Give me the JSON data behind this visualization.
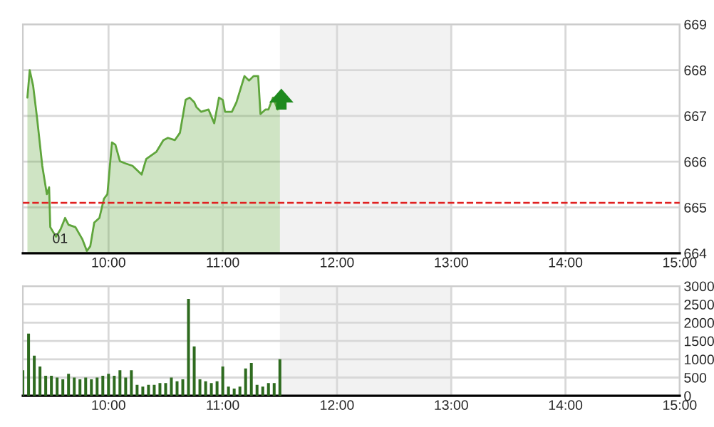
{
  "chart_data": [
    {
      "type": "area",
      "x": [
        9.29,
        9.31,
        9.34,
        9.375,
        9.42,
        9.46,
        9.48,
        9.49,
        9.54,
        9.58,
        9.62,
        9.65,
        9.71,
        9.77,
        9.81,
        9.84,
        9.875,
        9.92,
        9.96,
        9.99,
        10.03,
        10.06,
        10.1,
        10.15,
        10.21,
        10.29,
        10.33,
        10.42,
        10.48,
        10.52,
        10.58,
        10.625,
        10.675,
        10.71,
        10.75,
        10.77,
        10.81,
        10.875,
        10.925,
        10.967,
        11.0,
        11.02,
        11.08,
        11.12,
        11.19,
        11.23,
        11.27,
        11.31,
        11.33,
        11.375,
        11.4,
        11.44,
        11.48,
        11.5
      ],
      "series": [
        {
          "color": "#5fa53c",
          "values": [
            667.4,
            668.0,
            667.66,
            666.94,
            665.91,
            665.29,
            665.44,
            664.57,
            664.36,
            664.52,
            664.77,
            664.62,
            664.57,
            664.31,
            664.05,
            664.15,
            664.67,
            664.77,
            665.19,
            665.29,
            666.42,
            666.37,
            666.01,
            665.96,
            665.91,
            665.72,
            666.06,
            666.22,
            666.47,
            666.52,
            666.47,
            666.63,
            667.35,
            667.4,
            667.3,
            667.19,
            667.09,
            667.14,
            666.84,
            667.4,
            667.35,
            667.09,
            667.09,
            667.3,
            667.87,
            667.77,
            667.87,
            667.87,
            667.04,
            667.14,
            667.14,
            667.4,
            667.14,
            667.19
          ]
        }
      ],
      "xlim": [
        9.25,
        15
      ],
      "xticks": [
        {
          "value": 10,
          "label": "10:00"
        },
        {
          "value": 11,
          "label": "11:00"
        },
        {
          "value": 12,
          "label": "12:00"
        },
        {
          "value": 13,
          "label": "13:00"
        },
        {
          "value": 14,
          "label": "14:00"
        },
        {
          "value": 15,
          "label": "15:00"
        }
      ],
      "ylim": [
        664,
        669
      ],
      "yticks": [
        664,
        665,
        666,
        667,
        668,
        669
      ],
      "grid": true,
      "ref_lines": [
        {
          "axis": "y",
          "value": 665.1,
          "color": "#e02020",
          "line_style": "dashed"
        }
      ],
      "bands": [
        {
          "axis": "x",
          "from": 11.5,
          "to": 13,
          "color": "#f2f2f2"
        }
      ],
      "annotations": [
        "01"
      ]
    },
    {
      "type": "bar",
      "x": [
        9.25,
        9.3,
        9.35,
        9.4,
        9.45,
        9.5,
        9.55,
        9.6,
        9.65,
        9.7,
        9.75,
        9.8,
        9.85,
        9.9,
        9.95,
        10.0,
        10.05,
        10.1,
        10.15,
        10.2,
        10.25,
        10.3,
        10.35,
        10.4,
        10.45,
        10.5,
        10.55,
        10.6,
        10.65,
        10.7,
        10.75,
        10.8,
        10.85,
        10.9,
        10.95,
        11.0,
        11.05,
        11.1,
        11.15,
        11.2,
        11.25,
        11.3,
        11.35,
        11.4,
        11.45,
        11.5
      ],
      "series": [
        {
          "color": "#2e6b1f",
          "values": [
            700,
            1700,
            1100,
            800,
            550,
            550,
            500,
            450,
            600,
            500,
            450,
            500,
            450,
            500,
            550,
            600,
            550,
            700,
            500,
            700,
            300,
            250,
            300,
            300,
            350,
            350,
            500,
            400,
            450,
            2650,
            1350,
            450,
            400,
            350,
            400,
            800,
            250,
            200,
            250,
            750,
            900,
            300,
            250,
            350,
            350,
            1000
          ]
        }
      ],
      "xlim": [
        9.25,
        15
      ],
      "xticks": [
        {
          "value": 10,
          "label": "10:00"
        },
        {
          "value": 11,
          "label": "11:00"
        },
        {
          "value": 12,
          "label": "12:00"
        },
        {
          "value": 13,
          "label": "13:00"
        },
        {
          "value": 14,
          "label": "14:00"
        },
        {
          "value": 15,
          "label": "15:00"
        }
      ],
      "ylim": [
        0,
        3000
      ],
      "yticks": [
        0,
        500,
        1000,
        1500,
        2000,
        2500,
        3000
      ],
      "grid": true,
      "bands": [
        {
          "axis": "x",
          "from": 11.5,
          "to": 13,
          "color": "#f2f2f2"
        }
      ]
    }
  ]
}
